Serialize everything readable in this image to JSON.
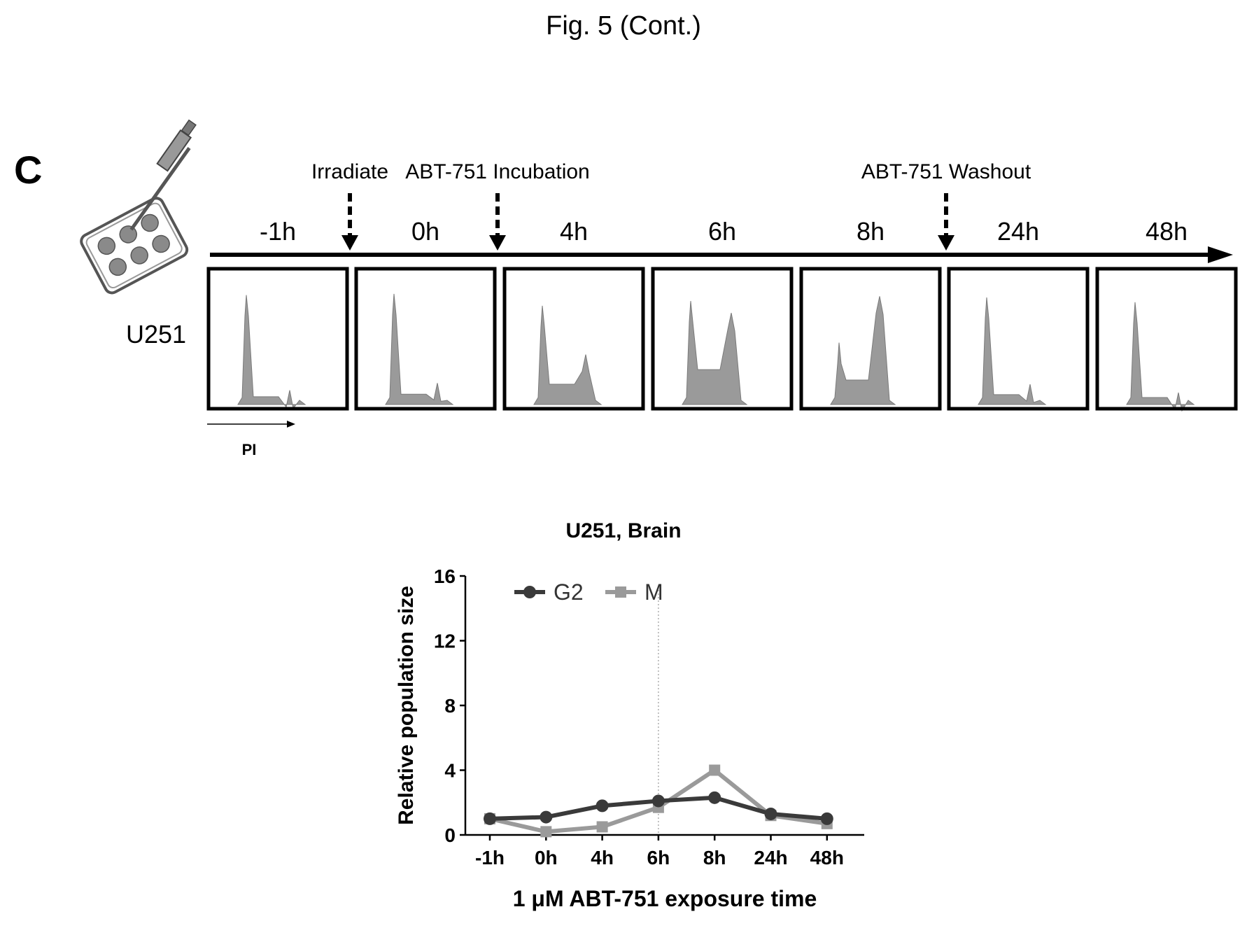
{
  "figure": {
    "title": "Fig. 5 (Cont.)",
    "panel_letter": "C"
  },
  "timeline": {
    "cell_line": "U251",
    "axis_label": "PI",
    "events": [
      {
        "label": "Irradiate"
      },
      {
        "label": "ABT-751 Incubation"
      },
      {
        "label": "ABT-751 Washout"
      }
    ],
    "timepoints": [
      "-1h",
      "0h",
      "4h",
      "6h",
      "8h",
      "24h",
      "48h"
    ],
    "histograms": [
      {
        "timepoint": "-1h",
        "g1_peak": 0.92,
        "g2_peak": 0.12
      },
      {
        "timepoint": "0h",
        "g1_peak": 0.93,
        "g2_peak": 0.18
      },
      {
        "timepoint": "4h",
        "g1_peak": 0.83,
        "g2_peak": 0.42
      },
      {
        "timepoint": "6h",
        "g1_peak": 0.87,
        "g2_peak": 0.77
      },
      {
        "timepoint": "8h",
        "g1_peak": 0.52,
        "g2_peak": 0.91
      },
      {
        "timepoint": "24h",
        "g1_peak": 0.9,
        "g2_peak": 0.17
      },
      {
        "timepoint": "48h",
        "g1_peak": 0.86,
        "g2_peak": 0.1
      }
    ],
    "icon": "well-plate-pipette-icon"
  },
  "chart_data": {
    "type": "line",
    "title": "U251, Brain",
    "xlabel": "1 μM ABT-751 exposure time",
    "ylabel": "Relative population size",
    "categories": [
      "-1h",
      "0h",
      "4h",
      "6h",
      "8h",
      "24h",
      "48h"
    ],
    "yticks": [
      0,
      4,
      8,
      12,
      16
    ],
    "ylim": [
      0,
      16
    ],
    "legend_position": "top",
    "series": [
      {
        "name": "G2",
        "values": [
          1.0,
          1.1,
          1.8,
          2.1,
          2.3,
          1.3,
          1.0
        ],
        "color": "#3a3a3a"
      },
      {
        "name": "M",
        "values": [
          1.0,
          0.2,
          0.5,
          1.7,
          4.0,
          1.2,
          0.7
        ],
        "color": "#9a9a9a"
      }
    ],
    "vertical_reference_line": "6h"
  }
}
